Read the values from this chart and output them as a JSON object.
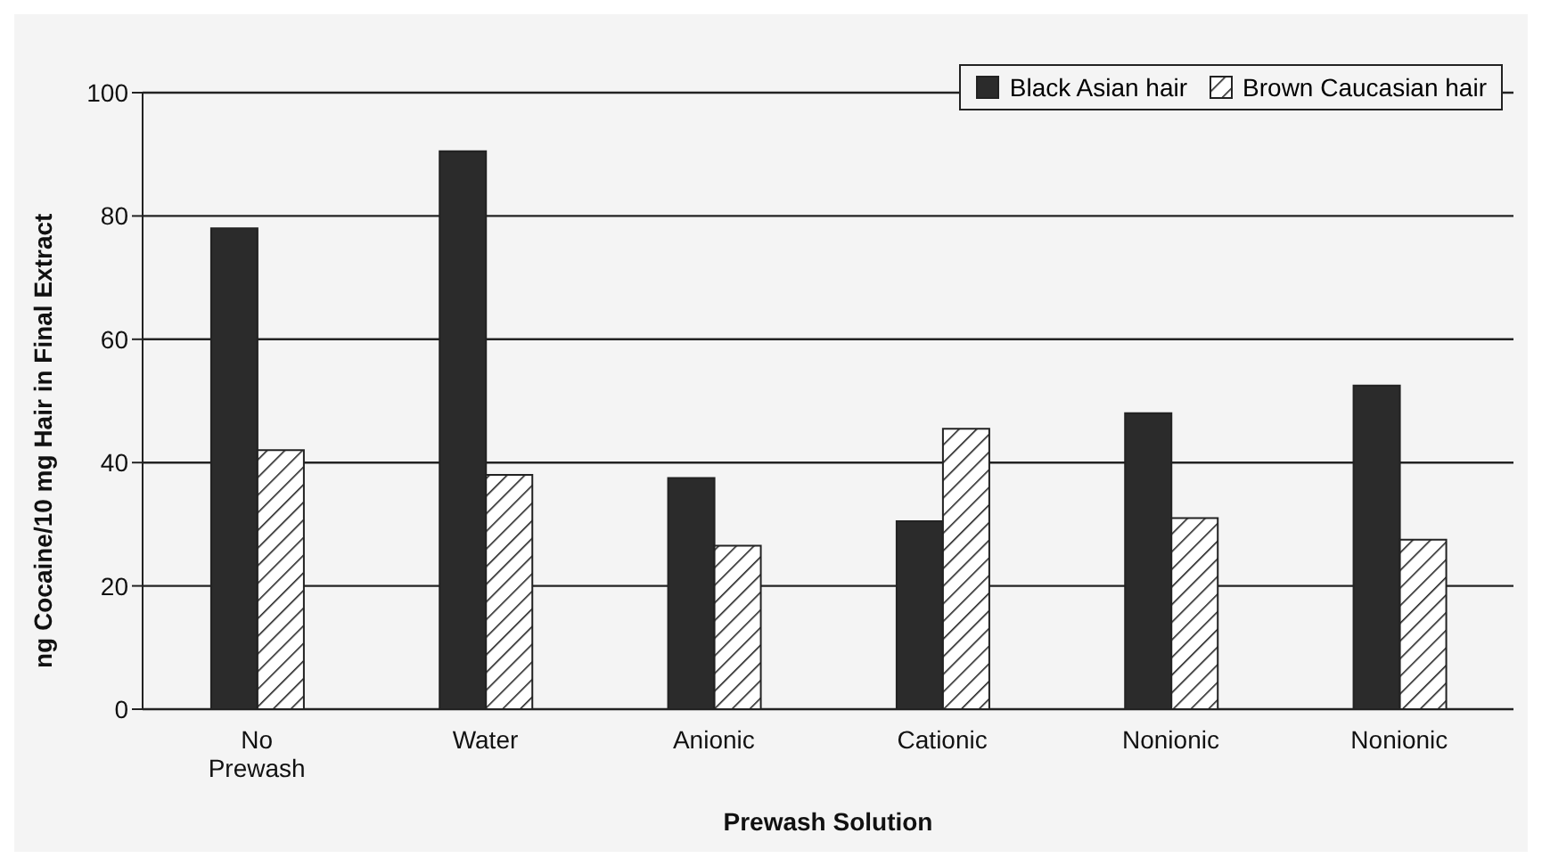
{
  "chart_data": {
    "type": "bar",
    "xlabel": "Prewash Solution",
    "ylabel": "ng Cocaine/10 mg Hair in Final Extract",
    "categories": [
      "No Prewash",
      "Water",
      "Anionic",
      "Cationic",
      "Nonionic",
      "Nonionic"
    ],
    "series": [
      {
        "name": "Black Asian hair",
        "color": "#2b2b2b",
        "values": [
          78,
          90.5,
          37.5,
          30.5,
          48,
          52.5
        ]
      },
      {
        "name": "Brown Caucasian hair",
        "color": "#222222",
        "values": [
          42,
          38,
          26.5,
          45.5,
          31,
          27.5
        ]
      }
    ],
    "ylim": [
      0,
      100
    ],
    "yticks": [
      0,
      20,
      40,
      60,
      80,
      100
    ],
    "grid": "y",
    "legend": "top right"
  }
}
